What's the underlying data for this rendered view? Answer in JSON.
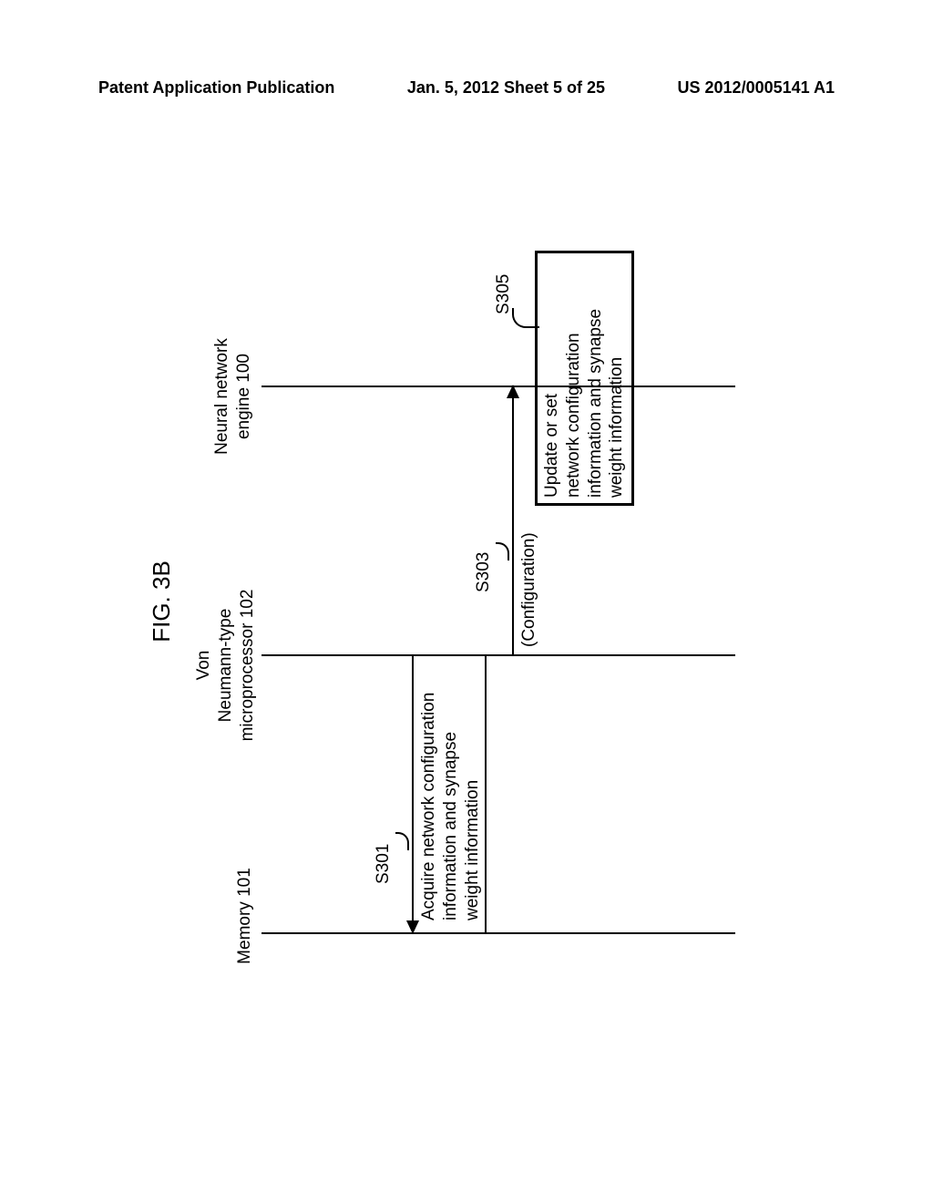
{
  "header": {
    "left": "Patent Application Publication",
    "center": "Jan. 5, 2012  Sheet 5 of 25",
    "right": "US 2012/0005141 A1"
  },
  "figure": {
    "title": "FIG. 3B",
    "columns": {
      "memory": "Memory 101",
      "processor": "Von\nNeumann-type\nmicroprocessor 102",
      "engine": "Neural network\nengine 100"
    },
    "steps": {
      "s301": {
        "label": "S301",
        "text": "Acquire network configuration\ninformation and synapse\nweight information"
      },
      "s303": {
        "label": "S303",
        "text": "(Configuration)"
      },
      "s305": {
        "label": "S305",
        "text": "Update or set\nnetwork configuration\ninformation and synapse\nweight information"
      }
    },
    "colors": {
      "line": "#000000",
      "background": "#ffffff",
      "text": "#000000"
    },
    "fontsize": {
      "header": 18,
      "figtitle": 26,
      "columns": 19,
      "steps": 19,
      "text": 19
    },
    "line_width": 2,
    "box_border_width": 3
  }
}
